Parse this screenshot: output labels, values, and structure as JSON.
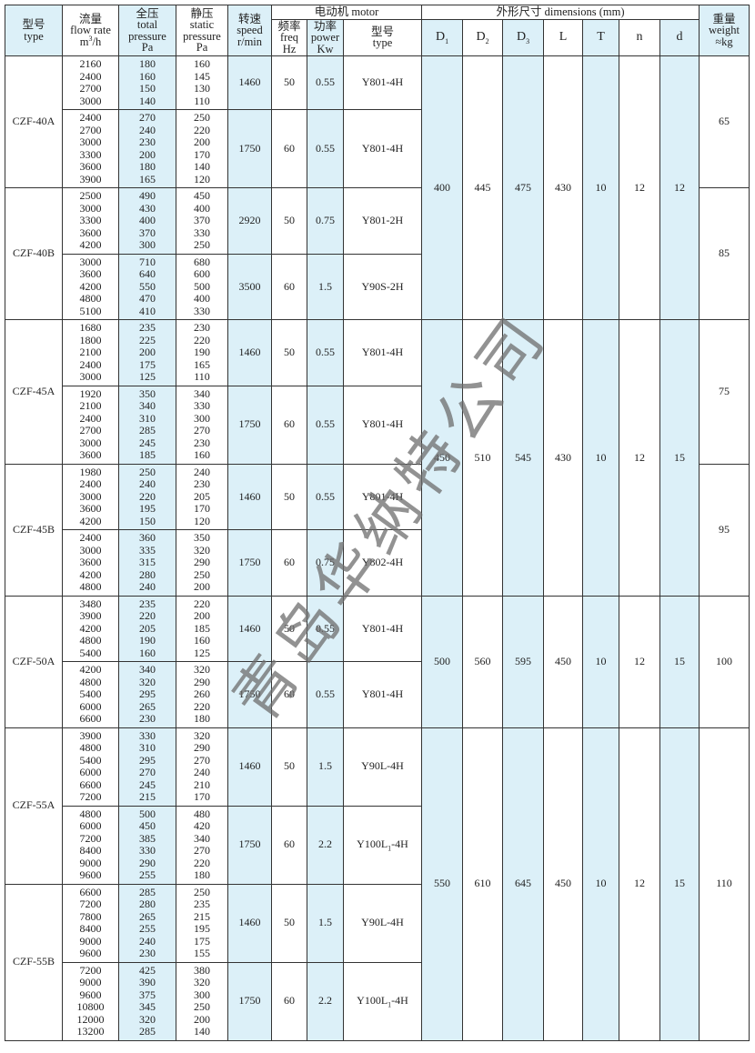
{
  "header": {
    "type": [
      "型号",
      "type"
    ],
    "flow": [
      "流量",
      "flow rate",
      {
        "base": "m",
        "sup": "3",
        "rest": "/h"
      }
    ],
    "total": [
      "全压",
      "total",
      "pressure",
      "Pa"
    ],
    "static": [
      "静压",
      "static",
      "pressure",
      "Pa"
    ],
    "speed": [
      "转速",
      "speed",
      "r/min"
    ],
    "motor": {
      "title": "电动机  motor",
      "freq": [
        "频率",
        "freq",
        "Hz"
      ],
      "power": [
        "功率",
        "power",
        "Kw"
      ],
      "type": [
        "型号",
        "type"
      ]
    },
    "dimensions": {
      "title": "外形尺寸   dimensions (mm)",
      "columns": [
        {
          "base": "D",
          "sub": "1"
        },
        {
          "base": "D",
          "sub": "2"
        },
        {
          "base": "D",
          "sub": "3"
        },
        "L",
        "T",
        "n",
        "d"
      ]
    },
    "weight": [
      "重量",
      "weight",
      "≈kg"
    ]
  },
  "groups": [
    {
      "dims": [
        400,
        445,
        475,
        430,
        10,
        12,
        12
      ],
      "units": [
        {
          "weight": 65,
          "models": [
            {
              "type": "CZF-40A",
              "speeds": [
                {
                  "flow": [
                    2160,
                    2400,
                    2700,
                    3000
                  ],
                  "total": [
                    180,
                    160,
                    150,
                    140
                  ],
                  "static": [
                    160,
                    145,
                    130,
                    110
                  ],
                  "speed": 1460,
                  "freq": 50,
                  "power": 0.55,
                  "motor": "Y801-4H"
                },
                {
                  "flow": [
                    2400,
                    2700,
                    3000,
                    3300,
                    3600,
                    3900
                  ],
                  "total": [
                    270,
                    240,
                    230,
                    200,
                    180,
                    165
                  ],
                  "static": [
                    250,
                    220,
                    200,
                    170,
                    140,
                    120
                  ],
                  "speed": 1750,
                  "freq": 60,
                  "power": 0.55,
                  "motor": "Y801-4H"
                }
              ]
            }
          ]
        },
        {
          "weight": 85,
          "models": [
            {
              "type": "CZF-40B",
              "speeds": [
                {
                  "flow": [
                    2500,
                    3000,
                    3300,
                    3600,
                    4200
                  ],
                  "total": [
                    490,
                    430,
                    400,
                    370,
                    300
                  ],
                  "static": [
                    450,
                    400,
                    370,
                    330,
                    250
                  ],
                  "speed": 2920,
                  "freq": 50,
                  "power": 0.75,
                  "motor": "Y801-2H"
                },
                {
                  "flow": [
                    3000,
                    3600,
                    4200,
                    4800,
                    5100
                  ],
                  "total": [
                    710,
                    640,
                    550,
                    470,
                    410
                  ],
                  "static": [
                    680,
                    600,
                    500,
                    400,
                    330
                  ],
                  "speed": 3500,
                  "freq": 60,
                  "power": 1.5,
                  "motor": "Y90S-2H"
                }
              ]
            }
          ]
        }
      ]
    },
    {
      "dims": [
        450,
        510,
        545,
        430,
        10,
        12,
        15
      ],
      "units": [
        {
          "weight": 75,
          "models": [
            {
              "type": "CZF-45A",
              "speeds": [
                {
                  "flow": [
                    1680,
                    1800,
                    2100,
                    2400,
                    3000
                  ],
                  "total": [
                    235,
                    225,
                    200,
                    175,
                    125
                  ],
                  "static": [
                    230,
                    220,
                    190,
                    165,
                    110
                  ],
                  "speed": 1460,
                  "freq": 50,
                  "power": 0.55,
                  "motor": "Y801-4H"
                },
                {
                  "flow": [
                    1920,
                    2100,
                    2400,
                    2700,
                    3000,
                    3600
                  ],
                  "total": [
                    350,
                    340,
                    310,
                    285,
                    245,
                    185
                  ],
                  "static": [
                    340,
                    330,
                    300,
                    270,
                    230,
                    160
                  ],
                  "speed": 1750,
                  "freq": 60,
                  "power": 0.55,
                  "motor": "Y801-4H"
                }
              ]
            }
          ]
        },
        {
          "weight": 95,
          "models": [
            {
              "type": "CZF-45B",
              "speeds": [
                {
                  "flow": [
                    1980,
                    2400,
                    3000,
                    3600,
                    4200
                  ],
                  "total": [
                    250,
                    240,
                    220,
                    195,
                    150
                  ],
                  "static": [
                    240,
                    230,
                    205,
                    170,
                    120
                  ],
                  "speed": 1460,
                  "freq": 50,
                  "power": 0.55,
                  "motor": "Y801-4H"
                },
                {
                  "flow": [
                    2400,
                    3000,
                    3600,
                    4200,
                    4800
                  ],
                  "total": [
                    360,
                    335,
                    315,
                    280,
                    240
                  ],
                  "static": [
                    350,
                    320,
                    290,
                    250,
                    200
                  ],
                  "speed": 1750,
                  "freq": 60,
                  "power": 0.75,
                  "motor": "Y802-4H"
                }
              ]
            }
          ]
        }
      ]
    },
    {
      "dims": [
        500,
        560,
        595,
        450,
        10,
        12,
        15
      ],
      "units": [
        {
          "weight": 100,
          "models": [
            {
              "type": "CZF-50A",
              "speeds": [
                {
                  "flow": [
                    3480,
                    3900,
                    4200,
                    4800,
                    5400
                  ],
                  "total": [
                    235,
                    220,
                    205,
                    190,
                    160
                  ],
                  "static": [
                    220,
                    200,
                    185,
                    160,
                    125
                  ],
                  "speed": 1460,
                  "freq": 50,
                  "power": 0.55,
                  "motor": "Y801-4H"
                },
                {
                  "flow": [
                    4200,
                    4800,
                    5400,
                    6000,
                    6600
                  ],
                  "total": [
                    340,
                    320,
                    295,
                    265,
                    230
                  ],
                  "static": [
                    320,
                    290,
                    260,
                    220,
                    180
                  ],
                  "speed": 1750,
                  "freq": 60,
                  "power": 0.55,
                  "motor": "Y801-4H"
                }
              ]
            }
          ]
        }
      ]
    },
    {
      "dims": [
        550,
        610,
        645,
        450,
        10,
        12,
        15
      ],
      "units": [
        {
          "weight": 110,
          "models": [
            {
              "type": "CZF-55A",
              "speeds": [
                {
                  "flow": [
                    3900,
                    4800,
                    5400,
                    6000,
                    6600,
                    7200
                  ],
                  "total": [
                    330,
                    310,
                    295,
                    270,
                    245,
                    215
                  ],
                  "static": [
                    320,
                    290,
                    270,
                    240,
                    210,
                    170
                  ],
                  "speed": 1460,
                  "freq": 50,
                  "power": 1.5,
                  "motor": "Y90L-4H"
                },
                {
                  "flow": [
                    4800,
                    6000,
                    7200,
                    8400,
                    9000,
                    9600
                  ],
                  "total": [
                    500,
                    450,
                    385,
                    330,
                    290,
                    255
                  ],
                  "static": [
                    480,
                    420,
                    340,
                    270,
                    220,
                    180
                  ],
                  "speed": 1750,
                  "freq": 60,
                  "power": 2.2,
                  "motor": {
                    "base": "Y100L",
                    "sub": "1",
                    "rest": "-4H"
                  }
                }
              ]
            },
            {
              "type": "CZF-55B",
              "speeds": [
                {
                  "flow": [
                    6600,
                    7200,
                    7800,
                    8400,
                    9000,
                    9600
                  ],
                  "total": [
                    285,
                    280,
                    265,
                    255,
                    240,
                    230
                  ],
                  "static": [
                    250,
                    235,
                    215,
                    195,
                    175,
                    155
                  ],
                  "speed": 1460,
                  "freq": 50,
                  "power": 1.5,
                  "motor": "Y90L-4H"
                },
                {
                  "flow": [
                    7200,
                    9000,
                    9600,
                    10800,
                    12000,
                    13200
                  ],
                  "total": [
                    425,
                    390,
                    375,
                    345,
                    320,
                    285
                  ],
                  "static": [
                    380,
                    320,
                    300,
                    250,
                    200,
                    140
                  ],
                  "speed": 1750,
                  "freq": 60,
                  "power": 2.2,
                  "motor": {
                    "base": "Y100L",
                    "sub": "1",
                    "rest": "-4H"
                  }
                }
              ]
            }
          ]
        }
      ]
    }
  ],
  "watermark": "青岛华纳特公司"
}
